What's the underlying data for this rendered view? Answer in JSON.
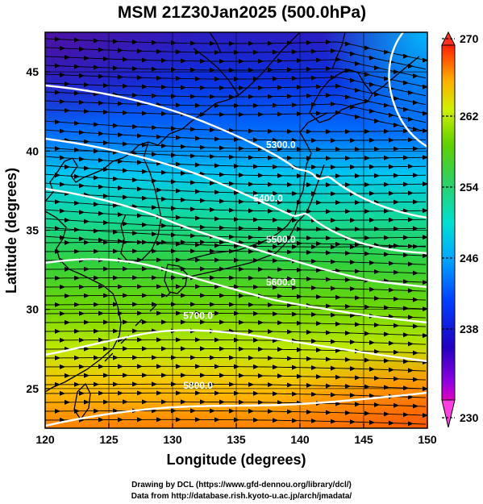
{
  "title": "MSM 21Z30Jan2025 (500.0hPa)",
  "xlabel": "Longitude (degrees)",
  "ylabel": "Latitude  (degrees)",
  "credits": {
    "line1": "Drawing by DCL (https://www.gfd-dennou.org/library/dcl/)",
    "line2": "Data from http://database.rish.kyoto-u.ac.jp/arch/jmadata/"
  },
  "map": {
    "lon_range": [
      120,
      150
    ],
    "lat_range": [
      22.5,
      47.5
    ],
    "lon_ticks": [
      "120",
      "125",
      "130",
      "135",
      "140",
      "145",
      "150"
    ],
    "lat_ticks": [
      "25",
      "30",
      "35",
      "40",
      "45"
    ],
    "grid": true,
    "flow_direction": "eastward (westerly wind), streamlines with arrows"
  },
  "colorbar": {
    "min": 230,
    "max": 270,
    "labels": [
      "270",
      "262",
      "254",
      "246",
      "238",
      "230"
    ],
    "colors": [
      "#d000ff",
      "#3010c0",
      "#0040ff",
      "#00a0ff",
      "#00e0e0",
      "#30d080",
      "#50d000",
      "#c0f000",
      "#ffd000",
      "#ff8000",
      "#ff3000"
    ]
  },
  "contours": [
    {
      "label": "5300.0",
      "lon": 138.5,
      "lat": 40.2
    },
    {
      "label": "5400.0",
      "lon": 137.5,
      "lat": 36.8
    },
    {
      "label": "5500.0",
      "lon": 138.5,
      "lat": 34.2
    },
    {
      "label": "5600.0",
      "lon": 138.5,
      "lat": 31.5
    },
    {
      "label": "5700.0",
      "lon": 132.0,
      "lat": 29.4
    },
    {
      "label": "5800.0",
      "lon": 132.0,
      "lat": 25.0
    }
  ]
}
